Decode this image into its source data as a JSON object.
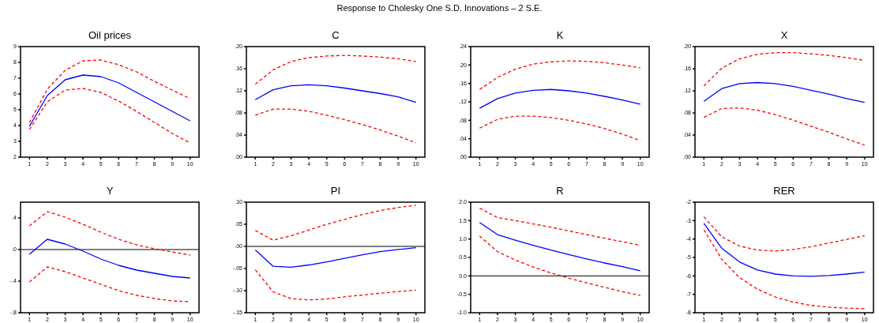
{
  "chart_data": [
    {
      "type": "line",
      "title": "Oil prices",
      "annotations": [
        "Response to Cholesky One S.D. Innovations – 2 S.E."
      ],
      "x": [
        1,
        2,
        3,
        4,
        5,
        6,
        7,
        8,
        9,
        10
      ],
      "xlim": [
        0.5,
        10.5
      ],
      "xticks": [
        1,
        2,
        3,
        4,
        5,
        6,
        7,
        8,
        9,
        10
      ],
      "ylim": [
        2,
        9
      ],
      "yticks": [
        2,
        3,
        4,
        5,
        6,
        7,
        8,
        9
      ],
      "grid": false,
      "series": [
        {
          "color": "#0000ff",
          "line_style": "solid",
          "values": [
            3.95,
            5.9,
            6.9,
            7.2,
            7.1,
            6.7,
            6.1,
            5.5,
            4.9,
            4.3
          ]
        },
        {
          "color": "#ff0000",
          "line_style": "dashed",
          "values": [
            4.2,
            6.3,
            7.5,
            8.1,
            8.15,
            7.85,
            7.4,
            6.8,
            6.25,
            5.7
          ]
        },
        {
          "color": "#ff0000",
          "line_style": "dashed",
          "values": [
            3.75,
            5.5,
            6.25,
            6.35,
            6.1,
            5.55,
            4.9,
            4.2,
            3.5,
            2.9
          ]
        }
      ]
    },
    {
      "type": "line",
      "title": "C",
      "x": [
        1,
        2,
        3,
        4,
        5,
        6,
        7,
        8,
        9,
        10
      ],
      "xlim": [
        0.5,
        10.5
      ],
      "xticks": [
        1,
        2,
        3,
        4,
        5,
        6,
        7,
        8,
        9,
        10
      ],
      "ylim": [
        0,
        0.2
      ],
      "yticks": [
        {
          "value": 0,
          "label": ".00"
        },
        {
          "value": 0.04,
          "label": ".04"
        },
        {
          "value": 0.08,
          "label": ".08"
        },
        {
          "value": 0.12,
          "label": ".12"
        },
        {
          "value": 0.16,
          "label": ".16"
        },
        {
          "value": 0.2,
          "label": ".20"
        }
      ],
      "grid": false,
      "series": [
        {
          "color": "#0000ff",
          "line_style": "solid",
          "values": [
            0.104,
            0.122,
            0.129,
            0.131,
            0.129,
            0.125,
            0.12,
            0.115,
            0.109,
            0.099
          ]
        },
        {
          "color": "#ff0000",
          "line_style": "dashed",
          "values": [
            0.132,
            0.158,
            0.173,
            0.18,
            0.183,
            0.184,
            0.183,
            0.181,
            0.178,
            0.173
          ]
        },
        {
          "color": "#ff0000",
          "line_style": "dashed",
          "values": [
            0.076,
            0.087,
            0.087,
            0.083,
            0.076,
            0.068,
            0.059,
            0.049,
            0.038,
            0.026
          ]
        }
      ]
    },
    {
      "type": "line",
      "title": "K",
      "x": [
        1,
        2,
        3,
        4,
        5,
        6,
        7,
        8,
        9,
        10
      ],
      "xlim": [
        0.5,
        10.5
      ],
      "xticks": [
        1,
        2,
        3,
        4,
        5,
        6,
        7,
        8,
        9,
        10
      ],
      "ylim": [
        0,
        0.24
      ],
      "yticks": [
        {
          "value": 0,
          "label": ".00"
        },
        {
          "value": 0.04,
          "label": ".04"
        },
        {
          "value": 0.08,
          "label": ".08"
        },
        {
          "value": 0.12,
          "label": ".12"
        },
        {
          "value": 0.16,
          "label": ".16"
        },
        {
          "value": 0.2,
          "label": ".20"
        },
        {
          "value": 0.24,
          "label": ".24"
        }
      ],
      "grid": false,
      "series": [
        {
          "color": "#0000ff",
          "line_style": "solid",
          "values": [
            0.106,
            0.127,
            0.139,
            0.145,
            0.147,
            0.144,
            0.139,
            0.132,
            0.124,
            0.115
          ]
        },
        {
          "color": "#ff0000",
          "line_style": "dashed",
          "values": [
            0.147,
            0.173,
            0.191,
            0.202,
            0.207,
            0.209,
            0.208,
            0.205,
            0.2,
            0.194
          ]
        },
        {
          "color": "#ff0000",
          "line_style": "dashed",
          "values": [
            0.063,
            0.082,
            0.089,
            0.089,
            0.086,
            0.08,
            0.072,
            0.062,
            0.05,
            0.036
          ]
        }
      ]
    },
    {
      "type": "line",
      "title": "X",
      "x": [
        1,
        2,
        3,
        4,
        5,
        6,
        7,
        8,
        9,
        10
      ],
      "xlim": [
        0.5,
        10.5
      ],
      "xticks": [
        1,
        2,
        3,
        4,
        5,
        6,
        7,
        8,
        9,
        10
      ],
      "ylim": [
        0,
        0.2
      ],
      "yticks": [
        {
          "value": 0,
          "label": ".00"
        },
        {
          "value": 0.04,
          "label": ".04"
        },
        {
          "value": 0.08,
          "label": ".08"
        },
        {
          "value": 0.12,
          "label": ".12"
        },
        {
          "value": 0.16,
          "label": ".16"
        },
        {
          "value": 0.2,
          "label": ".20"
        }
      ],
      "grid": false,
      "series": [
        {
          "color": "#0000ff",
          "line_style": "solid",
          "values": [
            0.101,
            0.124,
            0.133,
            0.135,
            0.133,
            0.128,
            0.121,
            0.114,
            0.106,
            0.099
          ]
        },
        {
          "color": "#ff0000",
          "line_style": "dashed",
          "values": [
            0.129,
            0.161,
            0.178,
            0.186,
            0.189,
            0.189,
            0.187,
            0.184,
            0.18,
            0.175
          ]
        },
        {
          "color": "#ff0000",
          "line_style": "dashed",
          "values": [
            0.072,
            0.088,
            0.089,
            0.085,
            0.077,
            0.067,
            0.056,
            0.045,
            0.033,
            0.022
          ]
        }
      ]
    },
    {
      "type": "line",
      "title": "Y",
      "x": [
        1,
        2,
        3,
        4,
        5,
        6,
        7,
        8,
        9,
        10
      ],
      "xlim": [
        0.5,
        10.5
      ],
      "xticks": [
        1,
        2,
        3,
        4,
        5,
        6,
        7,
        8,
        9,
        10
      ],
      "ylim": [
        -0.8,
        0.6
      ],
      "yticks": [
        {
          "value": -0.8,
          "label": "-.8"
        },
        {
          "value": -0.4,
          "label": "-.4"
        },
        {
          "value": 0,
          "label": ".0"
        },
        {
          "value": 0.4,
          "label": ".4"
        }
      ],
      "grid": false,
      "ref_lines": [
        {
          "axis": "y",
          "value": 0
        }
      ],
      "series": [
        {
          "color": "#0000ff",
          "line_style": "solid",
          "values": [
            -0.06,
            0.13,
            0.07,
            -0.02,
            -0.12,
            -0.2,
            -0.26,
            -0.3,
            -0.34,
            -0.36
          ]
        },
        {
          "color": "#ff0000",
          "line_style": "dashed",
          "values": [
            0.3,
            0.48,
            0.41,
            0.32,
            0.22,
            0.13,
            0.06,
            0.01,
            -0.03,
            -0.07
          ]
        },
        {
          "color": "#ff0000",
          "line_style": "dashed",
          "values": [
            -0.41,
            -0.22,
            -0.28,
            -0.36,
            -0.44,
            -0.52,
            -0.58,
            -0.62,
            -0.65,
            -0.66
          ]
        }
      ]
    },
    {
      "type": "line",
      "title": "PI",
      "x": [
        1,
        2,
        3,
        4,
        5,
        6,
        7,
        8,
        9,
        10
      ],
      "xlim": [
        0.5,
        10.5
      ],
      "xticks": [
        1,
        2,
        3,
        4,
        5,
        6,
        7,
        8,
        9,
        10
      ],
      "ylim": [
        -0.15,
        0.1
      ],
      "yticks": [
        {
          "value": -0.15,
          "label": "-.15"
        },
        {
          "value": -0.1,
          "label": "-.10"
        },
        {
          "value": -0.05,
          "label": "-.05"
        },
        {
          "value": 0,
          "label": ".00"
        },
        {
          "value": 0.05,
          "label": ".05"
        },
        {
          "value": 0.1,
          "label": ".10"
        }
      ],
      "grid": false,
      "ref_lines": [
        {
          "axis": "y",
          "value": 0
        }
      ],
      "series": [
        {
          "color": "#0000ff",
          "line_style": "solid",
          "values": [
            -0.008,
            -0.045,
            -0.047,
            -0.042,
            -0.035,
            -0.027,
            -0.019,
            -0.012,
            -0.007,
            -0.003
          ]
        },
        {
          "color": "#ff0000",
          "line_style": "dashed",
          "values": [
            0.036,
            0.014,
            0.024,
            0.037,
            0.05,
            0.061,
            0.072,
            0.081,
            0.088,
            0.093
          ]
        },
        {
          "color": "#ff0000",
          "line_style": "dashed",
          "values": [
            -0.053,
            -0.103,
            -0.118,
            -0.121,
            -0.119,
            -0.114,
            -0.11,
            -0.106,
            -0.102,
            -0.099
          ]
        }
      ]
    },
    {
      "type": "line",
      "title": "R",
      "x": [
        1,
        2,
        3,
        4,
        5,
        6,
        7,
        8,
        9,
        10
      ],
      "xlim": [
        0.5,
        10.5
      ],
      "xticks": [
        1,
        2,
        3,
        4,
        5,
        6,
        7,
        8,
        9,
        10
      ],
      "ylim": [
        -1,
        2
      ],
      "yticks": [
        {
          "value": -1,
          "label": "-1.0"
        },
        {
          "value": -0.5,
          "label": "-0.5"
        },
        {
          "value": 0,
          "label": "0.0"
        },
        {
          "value": 0.5,
          "label": "0.5"
        },
        {
          "value": 1,
          "label": "1.0"
        },
        {
          "value": 1.5,
          "label": "1.5"
        },
        {
          "value": 2,
          "label": "2.0"
        }
      ],
      "grid": false,
      "ref_lines": [
        {
          "axis": "y",
          "value": 0
        }
      ],
      "series": [
        {
          "color": "#0000ff",
          "line_style": "solid",
          "values": [
            1.45,
            1.12,
            0.97,
            0.83,
            0.7,
            0.58,
            0.46,
            0.35,
            0.25,
            0.14
          ]
        },
        {
          "color": "#ff0000",
          "line_style": "dashed",
          "values": [
            1.84,
            1.58,
            1.5,
            1.41,
            1.32,
            1.22,
            1.12,
            1.02,
            0.93,
            0.83
          ]
        },
        {
          "color": "#ff0000",
          "line_style": "dashed",
          "values": [
            1.08,
            0.66,
            0.43,
            0.24,
            0.08,
            -0.06,
            -0.19,
            -0.31,
            -0.43,
            -0.53
          ]
        }
      ]
    },
    {
      "type": "line",
      "title": "RER",
      "x": [
        1,
        2,
        3,
        4,
        5,
        6,
        7,
        8,
        9,
        10
      ],
      "xlim": [
        0.5,
        10.5
      ],
      "xticks": [
        1,
        2,
        3,
        4,
        5,
        6,
        7,
        8,
        9,
        10
      ],
      "ylim": [
        -8,
        -2
      ],
      "yticks": [
        -8,
        -7,
        -6,
        -5,
        -4,
        -3,
        -2
      ],
      "grid": false,
      "series": [
        {
          "color": "#0000ff",
          "line_style": "solid",
          "values": [
            -3.15,
            -4.5,
            -5.25,
            -5.68,
            -5.9,
            -6.0,
            -6.02,
            -5.98,
            -5.9,
            -5.8
          ]
        },
        {
          "color": "#ff0000",
          "line_style": "dashed",
          "values": [
            -2.8,
            -3.88,
            -4.38,
            -4.6,
            -4.65,
            -4.57,
            -4.42,
            -4.22,
            -4.02,
            -3.82
          ]
        },
        {
          "color": "#ff0000",
          "line_style": "dashed",
          "values": [
            -3.5,
            -5.1,
            -6.1,
            -6.72,
            -7.15,
            -7.42,
            -7.6,
            -7.7,
            -7.75,
            -7.78
          ]
        }
      ]
    }
  ]
}
